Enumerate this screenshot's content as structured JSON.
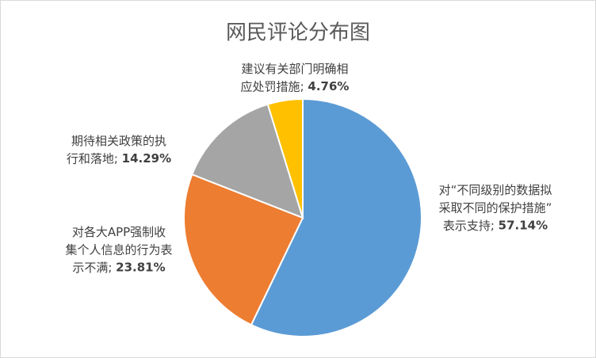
{
  "chart_data": {
    "type": "pie",
    "title": "网民评论分布图",
    "categories": [
      "对“不同级别的数据拟采取不同的保护措施”表示支持",
      "对各大APP强制收集个人信息的行为表示不满",
      "期待相关政策的执行和落地",
      "建议有关部门明确相应处罚措施"
    ],
    "values": [
      57.14,
      23.81,
      14.29,
      4.76
    ],
    "value_labels": [
      "57.14%",
      "23.81%",
      "14.29%",
      "4.76%"
    ],
    "label_separator": "; ",
    "colors": [
      "#5b9bd5",
      "#ed7d31",
      "#a5a5a5",
      "#ffc000"
    ]
  }
}
